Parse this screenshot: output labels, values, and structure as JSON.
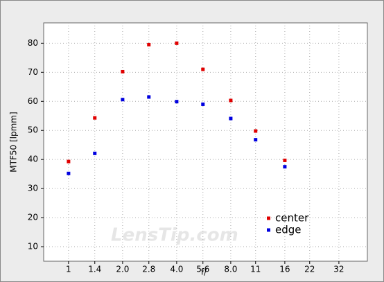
{
  "chart_data": {
    "type": "scatter",
    "watermark": "LensTip.com",
    "x_label": "f/",
    "y_label": "MTF50 [lpmm]",
    "xscale": "log",
    "xlim": [
      0.727,
      46.1
    ],
    "xticks": [
      1,
      1.4,
      {
        "value": 2,
        "label": "2.0"
      },
      2.8,
      {
        "value": 4,
        "label": "4.0"
      },
      5.6,
      {
        "value": 8,
        "label": "8.0"
      },
      11,
      16,
      22,
      32
    ],
    "ylim": [
      5,
      87
    ],
    "yticks": [
      10,
      20,
      30,
      40,
      50,
      60,
      70,
      80
    ],
    "grid": true,
    "legend": "lower right",
    "series": [
      {
        "name": "center",
        "color": "#e00000",
        "x": [
          1,
          1.4,
          2,
          2.8,
          4,
          5.6,
          8,
          11,
          16
        ],
        "values": [
          39.3,
          54.3,
          70.2,
          79.5,
          80,
          71,
          60.3,
          49.8,
          39.7
        ]
      },
      {
        "name": "edge",
        "color": "#0000e0",
        "x": [
          1,
          1.4,
          2,
          2.8,
          4,
          5.6,
          8,
          11,
          16
        ],
        "values": [
          35.2,
          42.1,
          60.6,
          61.5,
          59.9,
          59,
          54.1,
          46.8,
          37.5
        ]
      }
    ]
  }
}
